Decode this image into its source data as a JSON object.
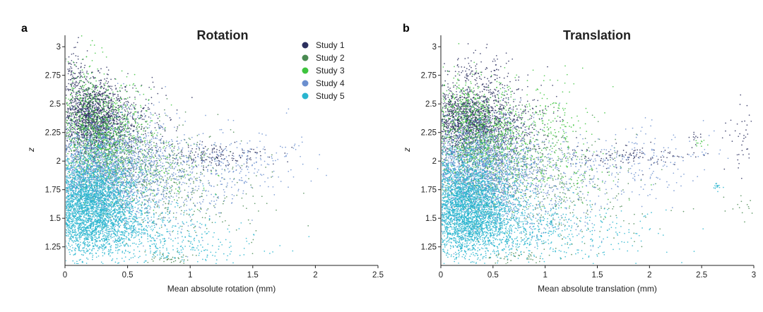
{
  "chart_data": [
    {
      "panel": "a",
      "type": "scatter",
      "title": "Rotation",
      "xlabel": "Mean absolute rotation (mm)",
      "ylabel": "z",
      "xlim": [
        0,
        2.5
      ],
      "ylim": [
        1.1,
        3.1
      ],
      "xticks": [
        "0",
        "0.5",
        "1",
        "1.5",
        "2",
        "2.5"
      ],
      "yticks": [
        "1.25",
        "1.5",
        "1.75",
        "2",
        "2.25",
        "2.5",
        "2.75",
        "3"
      ],
      "legend_position": "top-right",
      "grid": false,
      "series": [
        {
          "name": "Study 1",
          "color": "#2b2f5e",
          "clusters": [
            [
              0.22,
              2.38,
              0.12,
              0.16,
              1400
            ],
            [
              0.45,
              2.3,
              0.18,
              0.18,
              400
            ],
            [
              0.08,
              2.75,
              0.05,
              0.12,
              120
            ],
            [
              1.2,
              2.05,
              0.2,
              0.05,
              150
            ]
          ]
        },
        {
          "name": "Study 2",
          "color": "#4a8a52",
          "clusters": [
            [
              0.5,
              1.95,
              0.35,
              0.2,
              500
            ],
            [
              1.0,
              1.65,
              0.35,
              0.18,
              180
            ],
            [
              0.85,
              1.15,
              0.1,
              0.03,
              40
            ]
          ]
        },
        {
          "name": "Study 3",
          "color": "#3ec43e",
          "clusters": [
            [
              0.3,
              2.2,
              0.18,
              0.2,
              1000
            ],
            [
              0.15,
              2.55,
              0.1,
              0.2,
              150
            ],
            [
              0.6,
              1.9,
              0.25,
              0.15,
              200
            ]
          ]
        },
        {
          "name": "Study 4",
          "color": "#6b8fcf",
          "clusters": [
            [
              0.3,
              1.95,
              0.28,
              0.22,
              2200
            ],
            [
              0.9,
              1.9,
              0.3,
              0.15,
              300
            ],
            [
              1.45,
              2.0,
              0.25,
              0.15,
              150
            ],
            [
              0.7,
              1.55,
              0.3,
              0.15,
              150
            ]
          ]
        },
        {
          "name": "Study 5",
          "color": "#29b5cf",
          "clusters": [
            [
              0.2,
              1.62,
              0.18,
              0.22,
              3400
            ],
            [
              0.5,
              1.45,
              0.3,
              0.12,
              500
            ],
            [
              0.8,
              1.25,
              0.4,
              0.1,
              250
            ]
          ]
        }
      ]
    },
    {
      "panel": "b",
      "type": "scatter",
      "title": "Translation",
      "xlabel": "Mean absolute translation (mm)",
      "ylabel": "z",
      "xlim": [
        0,
        3
      ],
      "ylim": [
        1.1,
        3.1
      ],
      "xticks": [
        "0",
        "0.5",
        "1",
        "1.5",
        "2",
        "2.5",
        "3"
      ],
      "yticks": [
        "1.25",
        "1.5",
        "1.75",
        "2",
        "2.25",
        "2.5",
        "2.75",
        "3"
      ],
      "grid": false,
      "series": [
        {
          "name": "Study 1",
          "color": "#2b2f5e",
          "clusters": [
            [
              0.25,
              2.35,
              0.2,
              0.15,
              1400
            ],
            [
              0.55,
              2.3,
              0.25,
              0.18,
              400
            ],
            [
              0.35,
              2.75,
              0.15,
              0.1,
              120
            ],
            [
              1.8,
              2.05,
              0.3,
              0.05,
              120
            ],
            [
              2.9,
              2.2,
              0.08,
              0.15,
              40
            ],
            [
              2.45,
              2.22,
              0.04,
              0.02,
              10
            ]
          ]
        },
        {
          "name": "Study 2",
          "color": "#4a8a52",
          "clusters": [
            [
              0.6,
              1.95,
              0.45,
              0.2,
              500
            ],
            [
              1.1,
              1.6,
              0.5,
              0.18,
              180
            ],
            [
              0.7,
              1.15,
              0.15,
              0.03,
              40
            ],
            [
              2.9,
              1.6,
              0.1,
              0.05,
              15
            ]
          ]
        },
        {
          "name": "Study 3",
          "color": "#3ec43e",
          "clusters": [
            [
              0.4,
              2.2,
              0.25,
              0.2,
              1000
            ],
            [
              0.2,
              2.5,
              0.12,
              0.15,
              150
            ],
            [
              1.1,
              2.4,
              0.2,
              0.2,
              120
            ],
            [
              0.9,
              1.9,
              0.35,
              0.15,
              200
            ],
            [
              2.5,
              2.15,
              0.03,
              0.02,
              10
            ]
          ]
        },
        {
          "name": "Study 4",
          "color": "#6b8fcf",
          "clusters": [
            [
              0.35,
              1.95,
              0.3,
              0.22,
              2200
            ],
            [
              1.1,
              1.9,
              0.4,
              0.15,
              300
            ],
            [
              1.9,
              2.0,
              0.35,
              0.15,
              150
            ],
            [
              0.9,
              1.55,
              0.4,
              0.15,
              150
            ]
          ]
        },
        {
          "name": "Study 5",
          "color": "#29b5cf",
          "clusters": [
            [
              0.25,
              1.6,
              0.22,
              0.22,
              3400
            ],
            [
              0.6,
              1.45,
              0.35,
              0.12,
              500
            ],
            [
              1.2,
              1.35,
              0.45,
              0.12,
              250
            ],
            [
              2.65,
              1.78,
              0.03,
              0.02,
              15
            ]
          ]
        }
      ]
    }
  ]
}
